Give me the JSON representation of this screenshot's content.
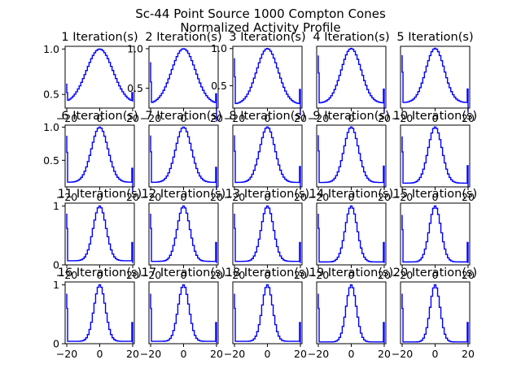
{
  "figure": {
    "title_line1": "Sc-44 Point Source 1000 Compton Cones",
    "title_line2": "Normalized Activity Profile"
  },
  "colors": {
    "line": "#0000ff",
    "axes": "#000000",
    "background": "#ffffff"
  },
  "chart_data": {
    "type": "line",
    "layout": "grid 4 rows x 5 columns",
    "title": "Sc-44 Point Source 1000 Compton Cones\nNormalized Activity Profile",
    "xlabel": "",
    "ylabel": "",
    "xlim": [
      -21,
      21
    ],
    "x": [
      -20,
      -19,
      -18,
      -17,
      -16,
      -15,
      -14,
      -13,
      -12,
      -11,
      -10,
      -9,
      -8,
      -7,
      -6,
      -5,
      -4,
      -3,
      -2,
      -1,
      0,
      1,
      2,
      3,
      4,
      5,
      6,
      7,
      8,
      9,
      10,
      11,
      12,
      13,
      14,
      15,
      16,
      17,
      18,
      19,
      20
    ],
    "line_style": "steps",
    "grid": false,
    "legend": "none",
    "panels": [
      {
        "title": "1 Iteration(s)",
        "ylim": [
          0.35,
          1.03
        ],
        "yticks": [
          "0.5",
          "1.0"
        ],
        "xticks": [
          "−20",
          "0",
          "20"
        ],
        "y_edges": [
          0.52,
          0.52
        ],
        "y_peak": 1.0,
        "y_floor": 0.4,
        "width": 8.0
      },
      {
        "title": "2 Iteration(s)",
        "ylim": [
          0.25,
          1.03
        ],
        "yticks": [
          "0.5",
          "1.0"
        ],
        "xticks": [
          "−20",
          "0",
          "20"
        ],
        "y_edges": [
          0.58,
          0.43
        ],
        "y_peak": 1.0,
        "y_floor": 0.3,
        "width": 7.2
      },
      {
        "title": "3 Iteration(s)",
        "ylim": [
          0.2,
          1.03
        ],
        "yticks": [
          "0.5",
          "1.0"
        ],
        "xticks": [
          "−20",
          "0",
          "20"
        ],
        "y_edges": [
          0.62,
          0.45
        ],
        "y_peak": 1.0,
        "y_floor": 0.25,
        "width": 6.5
      },
      {
        "title": "4 Iteration(s)",
        "ylim": [
          0.15,
          1.03
        ],
        "yticks": [],
        "xticks": [
          "−20",
          "0",
          "20"
        ],
        "y_edges": [
          0.65,
          0.42
        ],
        "y_peak": 1.0,
        "y_floor": 0.22,
        "width": 6.0
      },
      {
        "title": "5 Iteration(s)",
        "ylim": [
          0.12,
          1.03
        ],
        "yticks": [],
        "xticks": [
          "−20",
          "0",
          "20"
        ],
        "y_edges": [
          0.65,
          0.4
        ],
        "y_peak": 1.0,
        "y_floor": 0.2,
        "width": 5.6
      },
      {
        "title": "6 Iteration(s)",
        "ylim": [
          0.1,
          1.03
        ],
        "yticks": [
          "0.5",
          "1.0"
        ],
        "xticks": [
          "−20",
          "0",
          "20"
        ],
        "y_edges": [
          0.62,
          0.38
        ],
        "y_peak": 1.0,
        "y_floor": 0.17,
        "width": 5.0
      },
      {
        "title": "7 Iteration(s)",
        "ylim": [
          0.08,
          1.03
        ],
        "yticks": [],
        "xticks": [
          "−20",
          "0",
          "20"
        ],
        "y_edges": [
          0.62,
          0.38
        ],
        "y_peak": 1.0,
        "y_floor": 0.15,
        "width": 4.8
      },
      {
        "title": "8 Iteration(s)",
        "ylim": [
          0.06,
          1.03
        ],
        "yticks": [],
        "xticks": [
          "−20",
          "0",
          "20"
        ],
        "y_edges": [
          0.62,
          0.38
        ],
        "y_peak": 1.0,
        "y_floor": 0.13,
        "width": 4.6
      },
      {
        "title": "9 Iteration(s)",
        "ylim": [
          0.05,
          1.03
        ],
        "yticks": [],
        "xticks": [
          "−20",
          "0",
          "20"
        ],
        "y_edges": [
          0.62,
          0.38
        ],
        "y_peak": 1.0,
        "y_floor": 0.12,
        "width": 4.4
      },
      {
        "title": "10 Iteration(s)",
        "ylim": [
          0.04,
          1.03
        ],
        "yticks": [],
        "xticks": [
          "−20",
          "0",
          "20"
        ],
        "y_edges": [
          0.6,
          0.38
        ],
        "y_peak": 1.0,
        "y_floor": 0.1,
        "width": 4.2
      },
      {
        "title": "11 Iteration(s)",
        "ylim": [
          0.0,
          1.05
        ],
        "yticks": [
          "0",
          "1"
        ],
        "xticks": [
          "−20",
          "0",
          "20"
        ],
        "y_edges": [
          0.62,
          0.38
        ],
        "y_peak": 1.0,
        "y_floor": 0.07,
        "width": 3.9
      },
      {
        "title": "12 Iteration(s)",
        "ylim": [
          0.0,
          1.05
        ],
        "yticks": [],
        "xticks": [
          "−20",
          "0",
          "20"
        ],
        "y_edges": [
          0.62,
          0.38
        ],
        "y_peak": 1.0,
        "y_floor": 0.06,
        "width": 3.8
      },
      {
        "title": "13 Iteration(s)",
        "ylim": [
          0.0,
          1.05
        ],
        "yticks": [],
        "xticks": [
          "−20",
          "0",
          "20"
        ],
        "y_edges": [
          0.62,
          0.38
        ],
        "y_peak": 1.0,
        "y_floor": 0.06,
        "width": 3.7
      },
      {
        "title": "14 Iteration(s)",
        "ylim": [
          0.0,
          1.05
        ],
        "yticks": [],
        "xticks": [
          "−20",
          "0",
          "20"
        ],
        "y_edges": [
          0.62,
          0.38
        ],
        "y_peak": 1.0,
        "y_floor": 0.05,
        "width": 3.6
      },
      {
        "title": "15 Iteration(s)",
        "ylim": [
          0.0,
          1.05
        ],
        "yticks": [],
        "xticks": [
          "−20",
          "0",
          "20"
        ],
        "y_edges": [
          0.6,
          0.38
        ],
        "y_peak": 1.0,
        "y_floor": 0.05,
        "width": 3.5
      },
      {
        "title": "16 Iteration(s)",
        "ylim": [
          0.0,
          1.05
        ],
        "yticks": [
          "0",
          "1"
        ],
        "xticks": [
          "−20",
          "0",
          "20"
        ],
        "y_edges": [
          0.6,
          0.36
        ],
        "y_peak": 1.0,
        "y_floor": 0.04,
        "width": 3.4
      },
      {
        "title": "17 Iteration(s)",
        "ylim": [
          0.0,
          1.05
        ],
        "yticks": [],
        "xticks": [
          "−20",
          "0",
          "20"
        ],
        "y_edges": [
          0.6,
          0.36
        ],
        "y_peak": 1.0,
        "y_floor": 0.04,
        "width": 3.3
      },
      {
        "title": "18 Iteration(s)",
        "ylim": [
          0.0,
          1.05
        ],
        "yticks": [],
        "xticks": [
          "−20",
          "0",
          "20"
        ],
        "y_edges": [
          0.6,
          0.36
        ],
        "y_peak": 1.0,
        "y_floor": 0.04,
        "width": 3.2
      },
      {
        "title": "19 Iteration(s)",
        "ylim": [
          0.0,
          1.05
        ],
        "yticks": [],
        "xticks": [
          "−20",
          "0",
          "20"
        ],
        "y_edges": [
          0.6,
          0.36
        ],
        "y_peak": 1.0,
        "y_floor": 0.03,
        "width": 3.1
      },
      {
        "title": "20 Iteration(s)",
        "ylim": [
          0.0,
          1.05
        ],
        "yticks": [],
        "xticks": [
          "−20",
          "0",
          "20"
        ],
        "y_edges": [
          0.6,
          0.36
        ],
        "y_peak": 1.0,
        "y_floor": 0.03,
        "width": 3.0
      }
    ]
  }
}
